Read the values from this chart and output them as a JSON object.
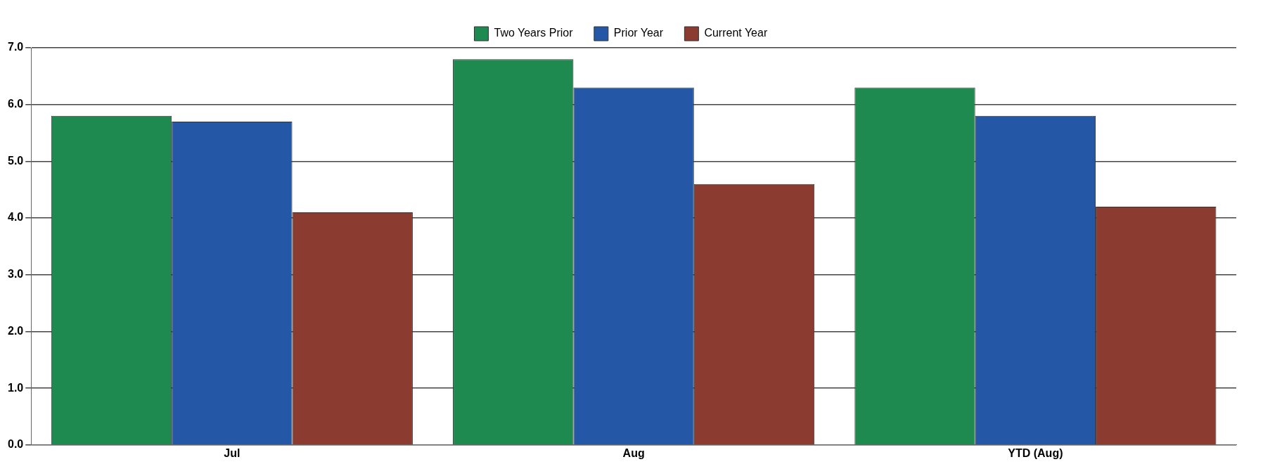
{
  "chart_data": {
    "type": "bar",
    "categories": [
      "Jul",
      "Aug",
      "YTD (Aug)"
    ],
    "series": [
      {
        "name": "Two Years Prior",
        "color": "#1f8a50",
        "values": [
          5.8,
          6.8,
          6.3
        ]
      },
      {
        "name": "Prior Year",
        "color": "#2457a6",
        "values": [
          5.7,
          6.3,
          5.8
        ]
      },
      {
        "name": "Current Year",
        "color": "#8c3b30",
        "values": [
          4.1,
          4.6,
          4.2
        ]
      }
    ],
    "ylim": [
      0,
      7
    ],
    "yticks": [
      {
        "value": 0,
        "label": "0.0"
      },
      {
        "value": 1,
        "label": "1.0"
      },
      {
        "value": 2,
        "label": "2.0"
      },
      {
        "value": 3,
        "label": "3.0"
      },
      {
        "value": 4,
        "label": "4.0"
      },
      {
        "value": 5,
        "label": "5.0"
      },
      {
        "value": 6,
        "label": "6.0"
      },
      {
        "value": 7,
        "label": "7.0"
      }
    ],
    "grid": "y",
    "legend": "top"
  }
}
